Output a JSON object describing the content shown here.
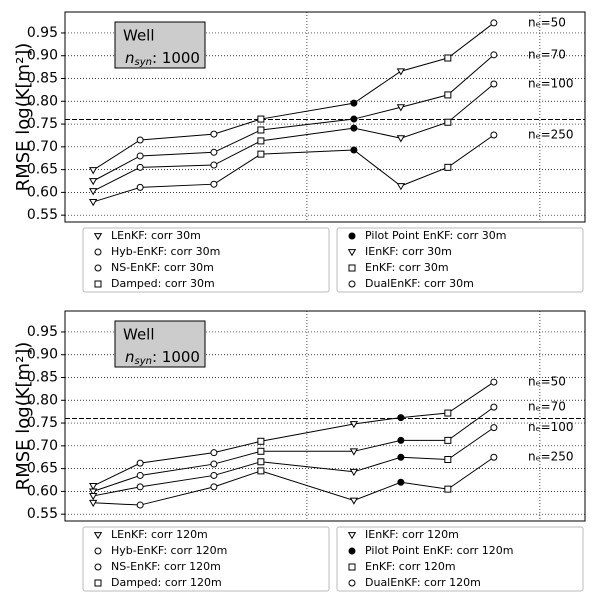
{
  "chart_data": [
    {
      "type": "line",
      "ylabel": "RMSE  log(K[m²])",
      "annotation": {
        "title": "Well",
        "symbol": "n",
        "subscript": "syn",
        "text": ": 1000"
      },
      "x": [
        1,
        2,
        3.57,
        4.57,
        6.55,
        7.55,
        8.55,
        9.53
      ],
      "xlim": [
        0.4,
        11.47
      ],
      "vlines": [
        5.55,
        10.51
      ],
      "ylim": [
        0.535,
        0.996
      ],
      "yticks": [
        0.55,
        {
          "value": 0.6,
          "label": "0.60"
        },
        0.65,
        {
          "value": 0.7,
          "label": "0.70"
        },
        0.75,
        {
          "value": 0.8,
          "label": "0.80"
        },
        0.85,
        {
          "value": 0.9,
          "label": "0.90"
        },
        0.95
      ],
      "grid": true,
      "hline": 0.76,
      "series": [
        {
          "name": "nₑ=50",
          "color": "#000000",
          "values": [
            0.649,
            0.715,
            0.728,
            0.761,
            0.796,
            0.866,
            0.895,
            0.972
          ]
        },
        {
          "name": "nₑ=70",
          "color": "#000000",
          "values": [
            0.625,
            0.68,
            0.688,
            0.737,
            0.761,
            0.787,
            0.814,
            0.902
          ]
        },
        {
          "name": "nₑ=100",
          "color": "#000000",
          "values": [
            0.603,
            0.655,
            0.66,
            0.713,
            0.741,
            0.719,
            0.754,
            0.838
          ]
        },
        {
          "name": "nₑ=250",
          "color": "#000000",
          "values": [
            0.579,
            0.611,
            0.618,
            0.684,
            0.693,
            0.614,
            0.655,
            0.726
          ]
        }
      ],
      "markers": [
        "tri-down",
        "circle",
        "circle",
        "square",
        "filled-circle",
        "tri-down",
        "square",
        "circle"
      ],
      "legend": [
        "LEnKF: corr  30m",
        "Hyb-EnKF: corr  30m",
        "NS-EnKF: corr  30m",
        "Damped: corr  30m",
        "Pilot Point EnKF: corr  30m",
        "IEnKF: corr  30m",
        "EnKF: corr  30m",
        "DualEnKF: corr  30m"
      ]
    },
    {
      "type": "line",
      "ylabel": "RMSE  log(K[m²])",
      "annotation": {
        "title": "Well",
        "symbol": "n",
        "subscript": "syn",
        "text": ": 1000"
      },
      "x": [
        1,
        2,
        3.57,
        4.57,
        6.55,
        7.55,
        8.55,
        9.53
      ],
      "xlim": [
        0.4,
        11.47
      ],
      "vlines": [
        5.55,
        10.51
      ],
      "ylim": [
        0.535,
        0.996
      ],
      "yticks": [
        0.55,
        {
          "value": 0.6,
          "label": "0.60"
        },
        0.65,
        {
          "value": 0.7,
          "label": "0.70"
        },
        0.75,
        {
          "value": 0.8,
          "label": "0.80"
        },
        0.85,
        {
          "value": 0.9,
          "label": "0.90"
        },
        0.95
      ],
      "grid": true,
      "hline": 0.76,
      "series": [
        {
          "name": "nₑ=50",
          "color": "#000000",
          "values": [
            0.612,
            0.662,
            0.685,
            0.71,
            0.748,
            0.762,
            0.772,
            0.84
          ]
        },
        {
          "name": "nₑ=70",
          "color": "#000000",
          "values": [
            0.6,
            0.635,
            0.66,
            0.688,
            0.688,
            0.712,
            0.712,
            0.785
          ]
        },
        {
          "name": "nₑ=100",
          "color": "#000000",
          "values": [
            0.59,
            0.61,
            0.635,
            0.665,
            0.643,
            0.675,
            0.67,
            0.74
          ]
        },
        {
          "name": "nₑ=250",
          "color": "#000000",
          "values": [
            0.575,
            0.57,
            0.61,
            0.645,
            0.58,
            0.62,
            0.605,
            0.675
          ]
        }
      ],
      "markers": [
        "tri-down",
        "circle",
        "circle",
        "square",
        "tri-down",
        "filled-circle",
        "square",
        "circle"
      ],
      "legend": [
        "LEnKF: corr 120m",
        "Hyb-EnKF: corr 120m",
        "NS-EnKF: corr 120m",
        "Damped: corr 120m",
        "IEnKF: corr 120m",
        "Pilot Point EnKF: corr 120m",
        "EnKF: corr 120m",
        "DualEnKF: corr 120m"
      ]
    }
  ]
}
